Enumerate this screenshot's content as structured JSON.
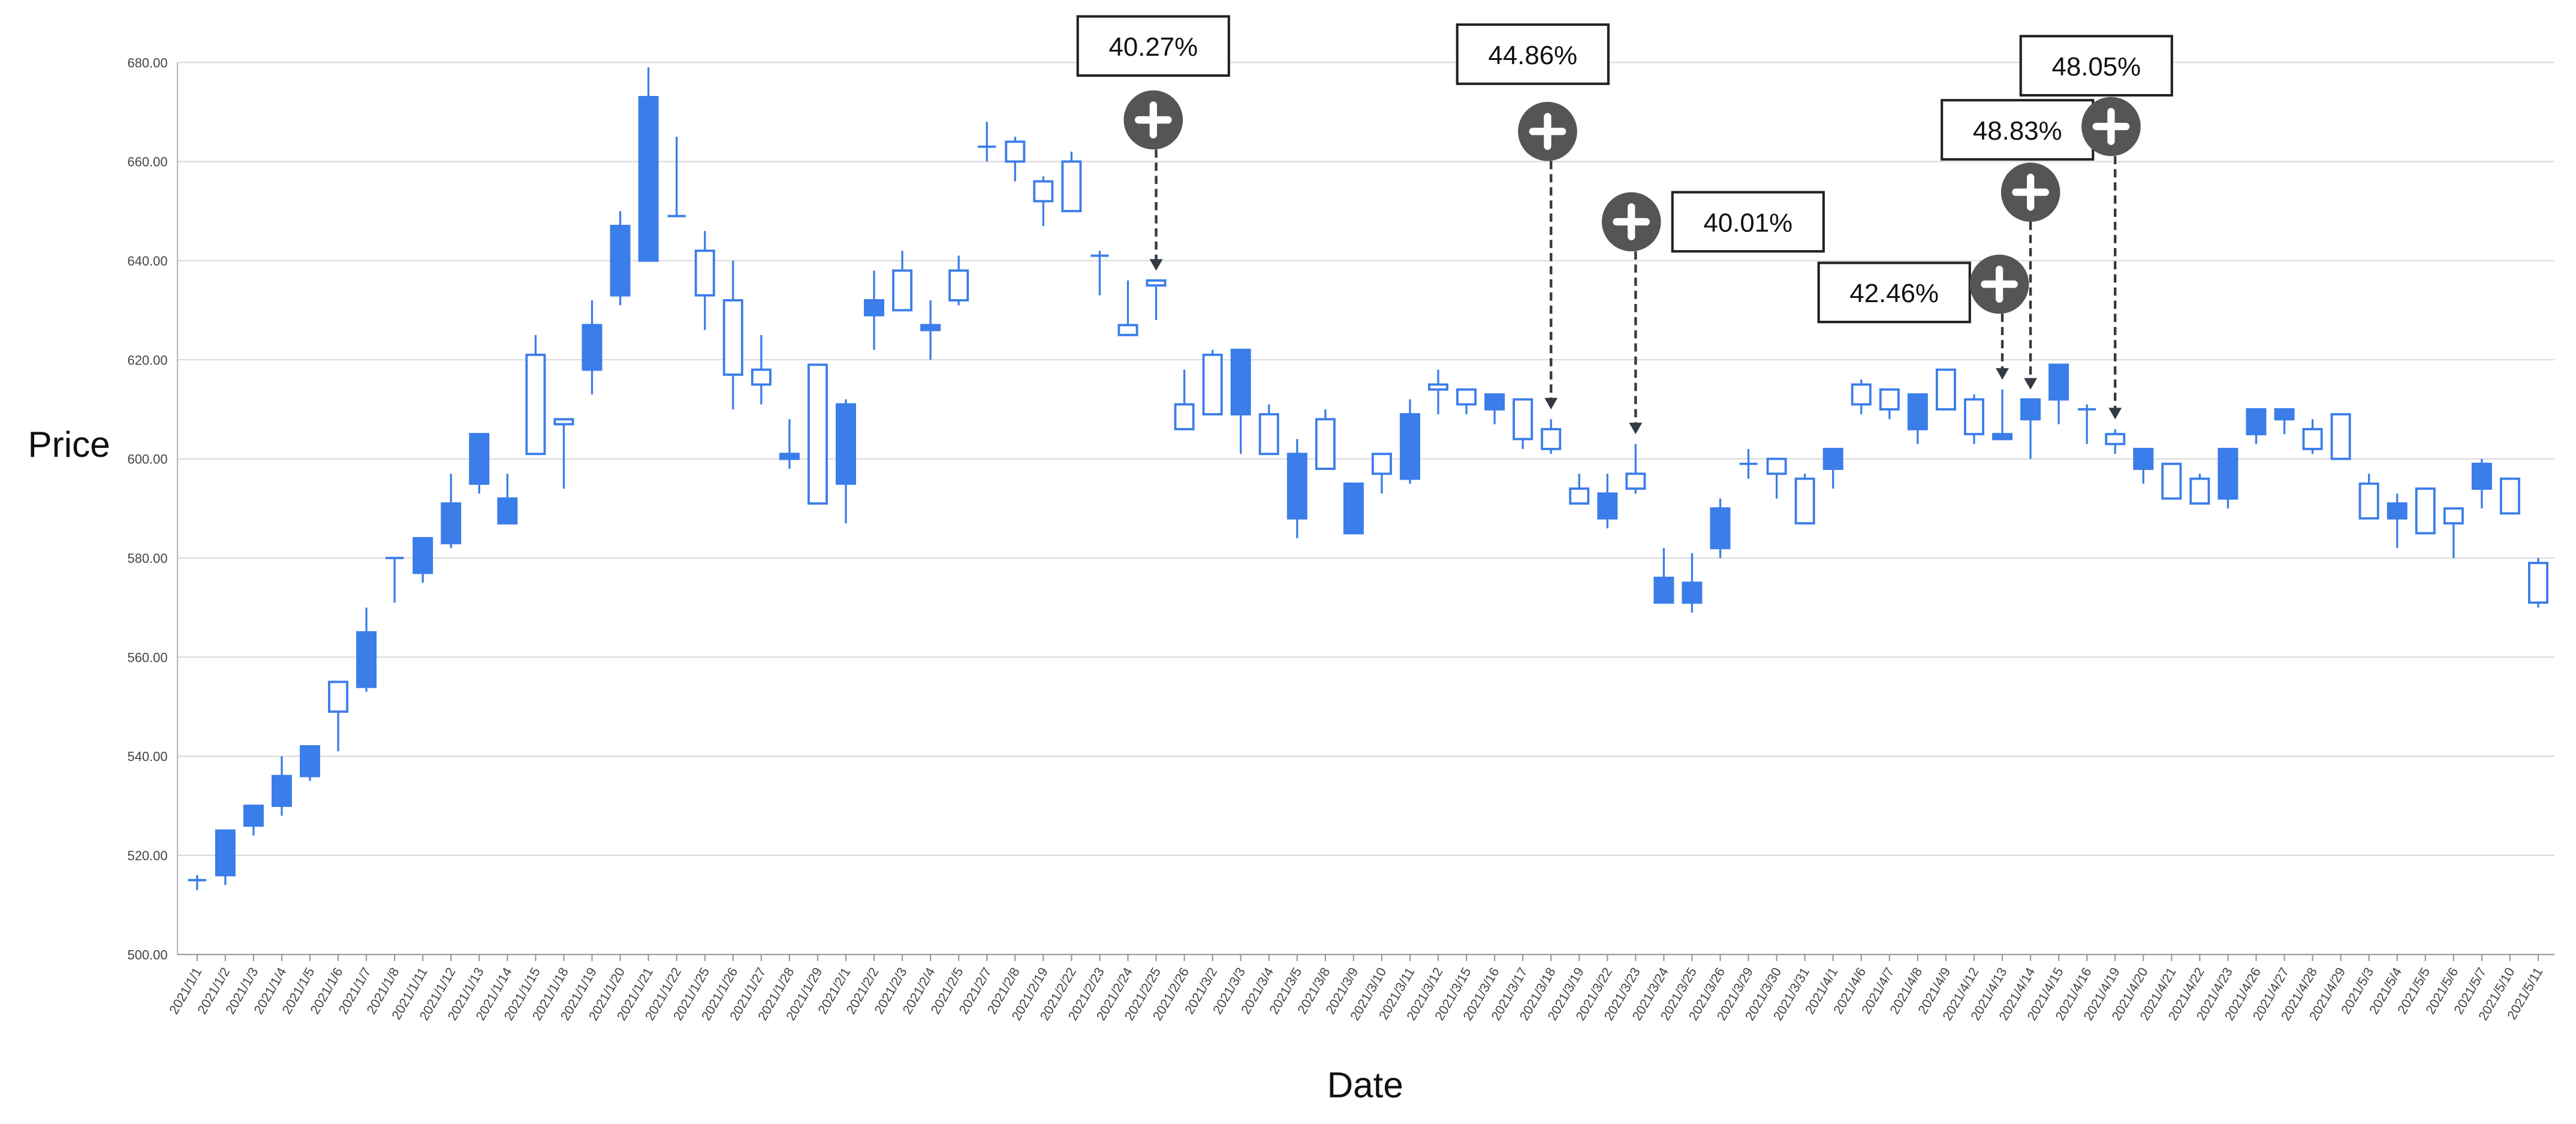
{
  "chart_data": {
    "type": "candlestick",
    "x_label": "Date",
    "y_label": "Price",
    "categories": [
      "2021/1/1",
      "2021/1/2",
      "2021/1/3",
      "2021/1/4",
      "2021/1/5",
      "2021/1/6",
      "2021/1/7",
      "2021/1/8",
      "2021/1/11",
      "2021/1/12",
      "2021/1/13",
      "2021/1/14",
      "2021/1/15",
      "2021/1/18",
      "2021/1/19",
      "2021/1/20",
      "2021/1/21",
      "2021/1/22",
      "2021/1/25",
      "2021/1/26",
      "2021/1/27",
      "2021/1/28",
      "2021/1/29",
      "2021/2/1",
      "2021/2/2",
      "2021/2/3",
      "2021/2/4",
      "2021/2/5",
      "2021/2/7",
      "2021/2/8",
      "2021/2/19",
      "2021/2/22",
      "2021/2/23",
      "2021/2/24",
      "2021/2/25",
      "2021/2/26",
      "2021/3/2",
      "2021/3/3",
      "2021/3/4",
      "2021/3/5",
      "2021/3/8",
      "2021/3/9",
      "2021/3/10",
      "2021/3/11",
      "2021/3/12",
      "2021/3/15",
      "2021/3/16",
      "2021/3/17",
      "2021/3/18",
      "2021/3/19",
      "2021/3/22",
      "2021/3/23",
      "2021/3/24",
      "2021/3/25",
      "2021/3/26",
      "2021/3/29",
      "2021/3/30",
      "2021/3/31",
      "2021/4/1",
      "2021/4/6",
      "2021/4/7",
      "2021/4/8",
      "2021/4/9",
      "2021/4/12",
      "2021/4/13",
      "2021/4/14",
      "2021/4/15",
      "2021/4/16",
      "2021/4/19",
      "2021/4/20",
      "2021/4/21",
      "2021/4/22",
      "2021/4/23",
      "2021/4/26",
      "2021/4/27",
      "2021/4/28",
      "2021/4/29",
      "2021/5/3",
      "2021/5/4",
      "2021/5/5",
      "2021/5/6",
      "2021/5/7",
      "2021/5/10",
      "2021/5/11"
    ],
    "open": [
      515,
      516,
      526,
      530,
      536,
      555,
      554,
      580,
      577,
      583,
      595,
      587,
      621,
      608,
      618,
      633,
      640,
      649,
      642,
      632,
      618,
      600,
      619,
      595,
      629,
      638,
      626,
      638,
      663,
      664,
      656,
      660,
      641,
      627,
      636,
      611,
      621,
      609,
      609,
      588,
      608,
      585,
      601,
      596,
      615,
      614,
      610,
      612,
      606,
      594,
      588,
      597,
      571,
      571,
      582,
      599,
      600,
      596,
      598,
      615,
      614,
      606,
      618,
      612,
      604,
      608,
      612,
      610,
      605,
      598,
      599,
      596,
      592,
      605,
      608,
      606,
      609,
      595,
      588,
      594,
      590,
      594,
      596,
      579
    ],
    "high": [
      516,
      525,
      530,
      540,
      542,
      555,
      570,
      580,
      584,
      597,
      605,
      597,
      625,
      608,
      632,
      650,
      679,
      665,
      646,
      640,
      625,
      608,
      619,
      612,
      638,
      642,
      632,
      641,
      668,
      665,
      657,
      662,
      642,
      636,
      636,
      618,
      622,
      622,
      611,
      604,
      610,
      595,
      601,
      612,
      618,
      614,
      613,
      612,
      608,
      597,
      597,
      603,
      582,
      581,
      592,
      602,
      600,
      597,
      602,
      616,
      614,
      613,
      618,
      613,
      614,
      612,
      619,
      611,
      606,
      602,
      599,
      597,
      602,
      610,
      610,
      608,
      609,
      597,
      593,
      594,
      590,
      600,
      596,
      580
    ],
    "low": [
      513,
      514,
      524,
      528,
      535,
      541,
      553,
      571,
      575,
      582,
      593,
      587,
      601,
      594,
      613,
      631,
      640,
      649,
      626,
      610,
      611,
      598,
      591,
      587,
      622,
      630,
      620,
      631,
      660,
      656,
      647,
      650,
      633,
      625,
      628,
      606,
      609,
      601,
      601,
      584,
      598,
      585,
      593,
      595,
      609,
      609,
      607,
      602,
      601,
      591,
      586,
      593,
      571,
      569,
      580,
      596,
      592,
      587,
      594,
      609,
      608,
      603,
      610,
      603,
      604,
      600,
      607,
      603,
      601,
      595,
      592,
      591,
      590,
      603,
      605,
      601,
      600,
      588,
      582,
      585,
      580,
      590,
      589,
      570
    ],
    "close": [
      515,
      525,
      530,
      536,
      542,
      549,
      565,
      580,
      584,
      591,
      605,
      592,
      601,
      607,
      627,
      647,
      673,
      649,
      633,
      617,
      615,
      601,
      591,
      611,
      632,
      630,
      627,
      632,
      663,
      660,
      652,
      650,
      641,
      625,
      635,
      606,
      609,
      622,
      601,
      601,
      598,
      595,
      597,
      609,
      614,
      611,
      613,
      604,
      602,
      591,
      593,
      594,
      576,
      575,
      590,
      599,
      597,
      587,
      602,
      611,
      610,
      613,
      610,
      605,
      605,
      612,
      619,
      610,
      603,
      602,
      592,
      591,
      602,
      610,
      610,
      602,
      600,
      588,
      591,
      585,
      587,
      599,
      589,
      571
    ],
    "color": "#3b7de9",
    "ylim": [
      500,
      680
    ],
    "yticks": [
      {
        "value": 500,
        "label": "500.00"
      },
      {
        "value": 520,
        "label": "520.00"
      },
      {
        "value": 540,
        "label": "540.00"
      },
      {
        "value": 560,
        "label": "560.00"
      },
      {
        "value": 580,
        "label": "580.00"
      },
      {
        "value": 600,
        "label": "600.00"
      },
      {
        "value": 620,
        "label": "620.00"
      },
      {
        "value": 640,
        "label": "640.00"
      },
      {
        "value": 660,
        "label": "660.00"
      },
      {
        "value": 680,
        "label": "680.00"
      }
    ],
    "grid": true,
    "annotations": [
      {
        "text": "40.27%",
        "category": "2021/2/25"
      },
      {
        "text": "44.86%",
        "category": "2021/3/18"
      },
      {
        "text": "40.01%",
        "category": "2021/3/23"
      },
      {
        "text": "42.46%",
        "category": "2021/4/13"
      },
      {
        "text": "48.83%",
        "category": "2021/4/14"
      },
      {
        "text": "48.05%",
        "category": "2021/4/19"
      }
    ]
  }
}
